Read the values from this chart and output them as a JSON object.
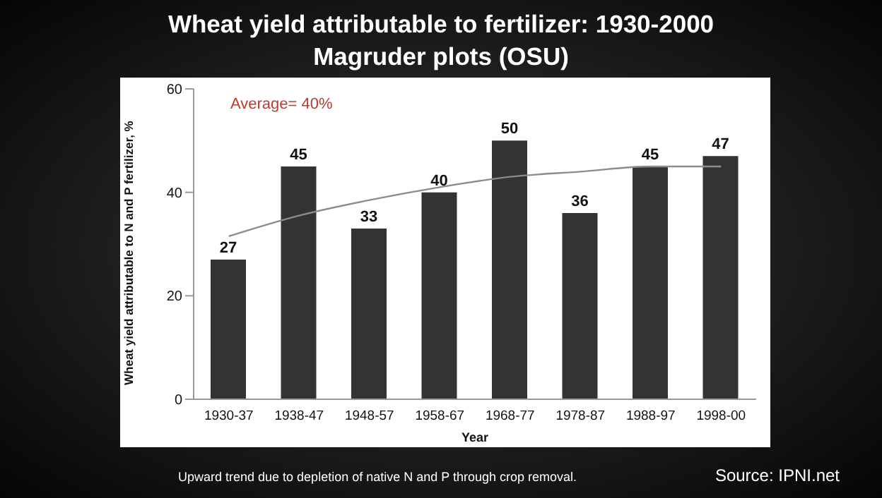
{
  "chart_data": {
    "type": "bar",
    "title": "Wheat yield attributable to fertilizer: 1930-2000",
    "subtitle": "Magruder plots (OSU)",
    "xlabel": "Year",
    "ylabel": "Wheat yield attributable to N and P fertilizer, %",
    "categories": [
      "1930-37",
      "1938-47",
      "1948-57",
      "1958-67",
      "1968-77",
      "1978-87",
      "1988-97",
      "1998-00"
    ],
    "series": [
      {
        "color": "#333333",
        "values": [
          27,
          45,
          33,
          40,
          50,
          36,
          45,
          47
        ],
        "value_labels": [
          "27",
          "45",
          "33",
          "40",
          "50",
          "36",
          "45",
          "47"
        ]
      },
      {
        "type": "line",
        "color": "#8c8c8c",
        "x": [
          "1930-37",
          "1938-47",
          "1948-57",
          "1958-67",
          "1968-77",
          "1978-87",
          "1988-97",
          "1998-00"
        ],
        "values": [
          31.5,
          35.5,
          38.5,
          41,
          43,
          44,
          45,
          45
        ]
      }
    ],
    "ylim": [
      0,
      60
    ],
    "yticks": [
      0,
      20,
      40,
      60
    ],
    "grid": false,
    "legend": false,
    "marker": "none",
    "line_style": "solid",
    "annotations": [
      "Average= 40%",
      "Upward trend due to depletion of native N and P through crop removal.",
      "Source: IPNI.net"
    ]
  }
}
